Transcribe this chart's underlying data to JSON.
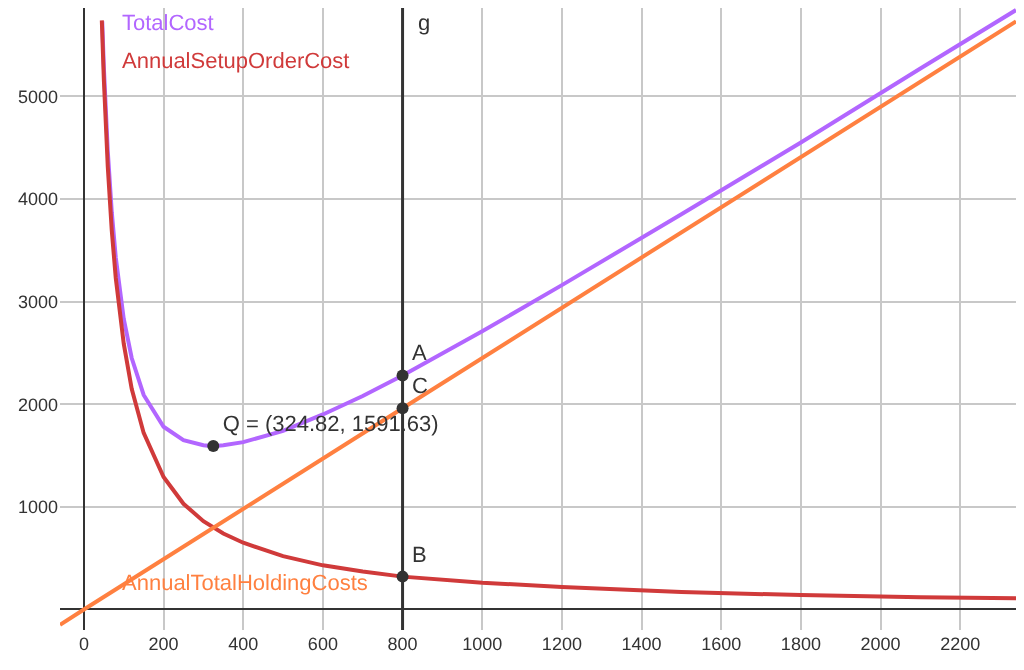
{
  "chart_data": {
    "type": "line",
    "xlim": [
      -60,
      2340
    ],
    "ylim": [
      -200,
      5860
    ],
    "xticks": [
      0,
      200,
      400,
      600,
      800,
      1000,
      1200,
      1400,
      1600,
      1800,
      2000,
      2200
    ],
    "yticks": [
      1000,
      2000,
      3000,
      4000,
      5000
    ],
    "grid": true,
    "marker": "none",
    "line_style": "solid",
    "series": [
      {
        "name": "TotalCost",
        "color": "#b266ff",
        "x": [
          46,
          50,
          60,
          70,
          80,
          100,
          120,
          150,
          200,
          250,
          300,
          324.82,
          350,
          400,
          500,
          600,
          700,
          800,
          1000,
          1200,
          1500,
          1800,
          2100,
          2340
        ],
        "values": [
          5730,
          5290,
          4460,
          3870,
          3430,
          2830,
          2450,
          2090,
          1780,
          1650,
          1600,
          1590,
          1600,
          1630,
          1740,
          1900,
          2080,
          2280,
          2710,
          3160,
          3850,
          4550,
          5270,
          5840
        ]
      },
      {
        "name": "AnnualSetupOrderCost",
        "color": "#d03a3a",
        "x": [
          45,
          50,
          60,
          70,
          80,
          100,
          120,
          150,
          200,
          250,
          300,
          350,
          400,
          500,
          600,
          700,
          800,
          1000,
          1200,
          1500,
          1800,
          2100,
          2340
        ],
        "values": [
          5740,
          5170,
          4310,
          3690,
          3230,
          2590,
          2150,
          1720,
          1290,
          1030,
          860,
          740,
          650,
          520,
          430,
          370,
          320,
          260,
          220,
          170,
          140,
          120,
          110
        ]
      },
      {
        "name": "AnnualTotalHoldingCosts",
        "color": "#ff8040",
        "x": [
          -60,
          0,
          800,
          2340
        ],
        "values": [
          -150,
          0,
          1960,
          5730
        ]
      },
      {
        "type": "scatter",
        "marker": "circle",
        "color": "#333333",
        "x": [
          324.82,
          800,
          800,
          800
        ],
        "values": [
          1591.63,
          2280,
          320,
          1960
        ],
        "value_labels": [
          "Q = (324.82, 1591.63)",
          "A",
          "B",
          "C"
        ]
      }
    ],
    "ref_lines": [
      {
        "axis": "x",
        "value": 800,
        "label": "g",
        "color": "#333333"
      }
    ]
  }
}
